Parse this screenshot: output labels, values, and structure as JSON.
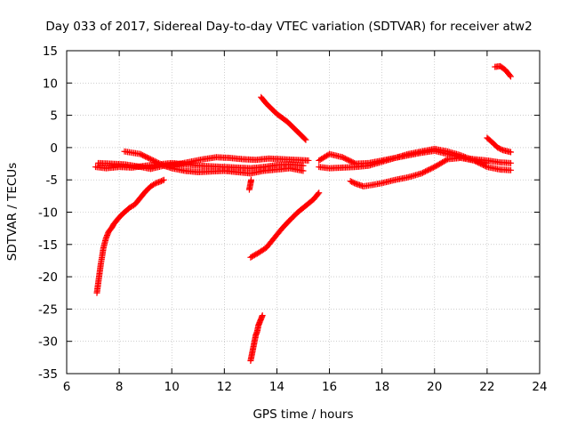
{
  "chart_data": {
    "type": "scatter",
    "title": "Day 033 of 2017, Sidereal Day-to-day VTEC variation (SDTVAR) for receiver atw2",
    "xlabel": "GPS time / hours",
    "ylabel": "SDTVAR / TECUs",
    "xlim": [
      6,
      24
    ],
    "ylim": [
      -35,
      15
    ],
    "xticks": [
      6,
      8,
      10,
      12,
      14,
      16,
      18,
      20,
      22,
      24
    ],
    "yticks": [
      15,
      10,
      5,
      0,
      -5,
      -10,
      -15,
      -20,
      -25,
      -30,
      -35
    ],
    "grid": true,
    "marker": "plus",
    "color": "#ff0000",
    "series": [
      {
        "name": "arc-rise-morning",
        "x": [
          7.15,
          7.2,
          7.25,
          7.3,
          7.35,
          7.4,
          7.5,
          7.6,
          7.7,
          7.8,
          8.0,
          8.2,
          8.4,
          8.6,
          8.8,
          9.0,
          9.2,
          9.4,
          9.6,
          9.7
        ],
        "y": [
          -22.5,
          -21.0,
          -19.5,
          -18.0,
          -16.8,
          -15.5,
          -14.0,
          -13.0,
          -12.5,
          -11.8,
          -10.8,
          -10.0,
          -9.3,
          -8.8,
          -7.8,
          -6.8,
          -6.0,
          -5.5,
          -5.2,
          -5.0
        ]
      },
      {
        "name": "band-a",
        "x": [
          7.1,
          7.5,
          8.0,
          8.5,
          9.0,
          9.5,
          10.0,
          10.5,
          11.0,
          11.5,
          12.0,
          12.5,
          13.0,
          13.5,
          14.0,
          14.5,
          15.0
        ],
        "y": [
          -3.0,
          -3.2,
          -3.0,
          -3.1,
          -2.8,
          -2.6,
          -2.4,
          -2.6,
          -2.8,
          -2.9,
          -3.0,
          -3.1,
          -3.2,
          -3.0,
          -2.7,
          -2.6,
          -2.8
        ]
      },
      {
        "name": "band-b",
        "x": [
          7.2,
          7.7,
          8.2,
          8.7,
          9.2,
          9.7,
          10.2,
          10.7,
          11.2,
          11.7,
          12.2,
          12.7,
          13.2,
          13.7,
          14.2,
          14.7,
          15.2
        ],
        "y": [
          -2.4,
          -2.5,
          -2.6,
          -2.9,
          -3.3,
          -2.8,
          -2.6,
          -2.2,
          -1.8,
          -1.5,
          -1.6,
          -1.8,
          -1.9,
          -1.7,
          -1.8,
          -1.9,
          -2.0
        ]
      },
      {
        "name": "band-c",
        "x": [
          8.2,
          8.5,
          8.8,
          9.1,
          9.4,
          9.7,
          10.0,
          10.5,
          11.0,
          11.5,
          12.0,
          12.5,
          13.0,
          13.5,
          14.0,
          14.5,
          15.0
        ],
        "y": [
          -0.6,
          -0.8,
          -1.0,
          -1.6,
          -2.2,
          -2.8,
          -3.2,
          -3.6,
          -3.8,
          -3.7,
          -3.6,
          -3.8,
          -4.0,
          -3.6,
          -3.4,
          -3.2,
          -3.6
        ]
      },
      {
        "name": "arc-peak-1340",
        "x": [
          13.0,
          13.05,
          13.1,
          13.15,
          13.2,
          13.25,
          13.3,
          13.35,
          13.4,
          13.45
        ],
        "y": [
          -33.0,
          -32.0,
          -31.0,
          -30.0,
          -29.0,
          -28.5,
          -27.5,
          -27.0,
          -26.5,
          -26.0
        ]
      },
      {
        "name": "blip-1300",
        "x": [
          12.95,
          13.0,
          13.02
        ],
        "y": [
          -6.5,
          -5.5,
          -5.0
        ]
      },
      {
        "name": "arc-rise-afternoon",
        "x": [
          13.0,
          13.3,
          13.6,
          13.9,
          14.2,
          14.5,
          14.8,
          15.1,
          15.4,
          15.6
        ],
        "y": [
          -17.0,
          -16.3,
          -15.5,
          -14.0,
          -12.5,
          -11.2,
          -10.0,
          -9.0,
          -8.0,
          -7.0
        ]
      },
      {
        "name": "arc-fall-afternoon",
        "x": [
          13.4,
          13.6,
          13.8,
          14.0,
          14.2,
          14.4,
          14.6,
          14.8,
          15.0,
          15.1
        ],
        "y": [
          7.8,
          6.8,
          6.0,
          5.2,
          4.6,
          4.0,
          3.2,
          2.4,
          1.6,
          1.2
        ]
      },
      {
        "name": "band-d",
        "x": [
          15.6,
          16.0,
          16.5,
          17.0,
          17.5,
          18.0,
          18.5,
          19.0,
          19.5,
          20.0,
          20.5,
          21.0,
          21.5,
          22.0,
          22.5,
          22.9
        ],
        "y": [
          -3.0,
          -3.2,
          -3.1,
          -3.0,
          -2.8,
          -2.2,
          -1.6,
          -1.0,
          -0.6,
          -0.2,
          -0.6,
          -1.2,
          -2.0,
          -3.0,
          -3.4,
          -3.5
        ]
      },
      {
        "name": "band-e",
        "x": [
          15.6,
          16.0,
          16.5,
          17.0,
          17.5,
          18.0,
          18.5,
          19.0,
          19.5,
          20.0,
          20.5,
          21.0,
          21.5,
          22.0,
          22.5,
          22.9
        ],
        "y": [
          -2.0,
          -1.0,
          -1.5,
          -2.5,
          -2.4,
          -2.0,
          -1.6,
          -1.2,
          -0.8,
          -0.5,
          -1.0,
          -1.5,
          -1.8,
          -2.0,
          -2.3,
          -2.4
        ]
      },
      {
        "name": "band-f",
        "x": [
          16.8,
          17.0,
          17.3,
          17.6,
          18.0,
          18.5,
          19.0,
          19.5,
          20.0,
          20.5,
          21.0,
          21.5,
          22.0
        ],
        "y": [
          -5.2,
          -5.6,
          -6.0,
          -5.8,
          -5.5,
          -5.0,
          -4.6,
          -4.0,
          -3.0,
          -1.8,
          -1.6,
          -2.0,
          -2.4
        ]
      },
      {
        "name": "arc-late-1",
        "x": [
          22.0,
          22.2,
          22.4,
          22.6,
          22.8,
          22.9
        ],
        "y": [
          1.5,
          0.8,
          0.0,
          -0.4,
          -0.6,
          -0.7
        ]
      },
      {
        "name": "arc-late-2",
        "x": [
          22.3,
          22.5,
          22.7,
          22.9
        ],
        "y": [
          12.5,
          12.6,
          12.0,
          11.0
        ]
      }
    ]
  }
}
